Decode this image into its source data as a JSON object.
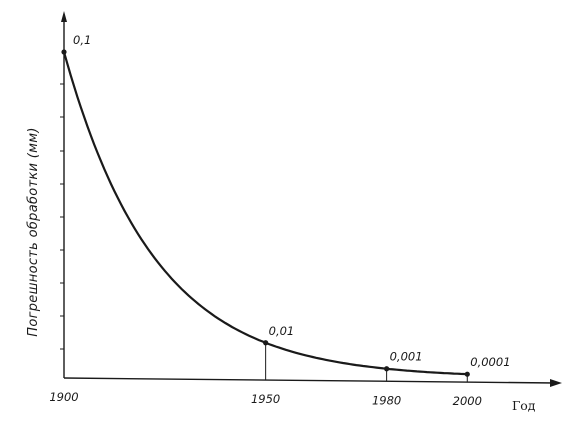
{
  "chart_data": {
    "type": "line",
    "title": "",
    "xlabel": "Год",
    "ylabel": "Погрешность обработки (мм)",
    "x_ticks": [
      "1900",
      "1950",
      "1980",
      "2000"
    ],
    "x_tick_values": [
      1900,
      1950,
      1980,
      2000
    ],
    "xlim": [
      1900,
      2022
    ],
    "scale": "schematic",
    "grid": false,
    "legend": "none",
    "points": [
      {
        "x": 1900,
        "y": 0.1,
        "label": "0,1"
      },
      {
        "x": 1950,
        "y": 0.01,
        "label": "0,01"
      },
      {
        "x": 1980,
        "y": 0.001,
        "label": "0,001"
      },
      {
        "x": 2000,
        "y": 0.0001,
        "label": "0,0001"
      }
    ],
    "line_color": "#1a1a1a"
  }
}
